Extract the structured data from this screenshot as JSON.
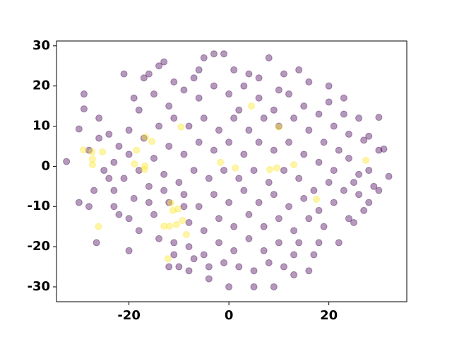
{
  "chart_data": {
    "type": "scatter",
    "xlim": [
      -34.5,
      35.6
    ],
    "ylim": [
      -33.7,
      31.2
    ],
    "xticks": [
      -20,
      0,
      20
    ],
    "yticks": [
      -30,
      -20,
      -10,
      0,
      10,
      20,
      30
    ],
    "alpha": 0.4,
    "series": [
      {
        "color": "#440154",
        "x": [
          -32.5,
          -30,
          -29,
          -29,
          -30,
          -28,
          -26.5,
          -24,
          -23,
          -23,
          -21,
          -20,
          -20,
          -17,
          -14,
          -13,
          -12,
          -11,
          -7,
          -5,
          -3,
          -1,
          4,
          8,
          10,
          14,
          20,
          20,
          23,
          27,
          30,
          32,
          30,
          29,
          27,
          24,
          22,
          18,
          16,
          13,
          9,
          5,
          0,
          -4,
          -8,
          -10,
          28,
          30,
          31,
          25,
          26,
          -26,
          -24,
          -22,
          -25,
          -20,
          -18,
          -19,
          -15,
          -12,
          -9,
          -6,
          -3,
          0,
          3,
          6,
          9,
          12,
          15,
          18,
          21,
          24,
          22,
          19,
          16,
          13,
          10,
          7,
          4,
          1,
          -2,
          -5,
          -8,
          -11,
          -14,
          -17,
          -20,
          -23,
          -21,
          -18,
          -15,
          -12,
          -9,
          -6,
          -3,
          0,
          3,
          6,
          9,
          12,
          15,
          18,
          21,
          24,
          26,
          23,
          20,
          17,
          14,
          11,
          8,
          5,
          2,
          -1,
          -4,
          -7,
          -10,
          -13,
          -16,
          -19,
          -22,
          -18,
          -15,
          -12,
          -9,
          -6,
          -3,
          0,
          3,
          6,
          9,
          12,
          15,
          18,
          21,
          19,
          16,
          13,
          10,
          7,
          4,
          1,
          -2,
          -5,
          -8,
          -14,
          -11,
          -8,
          -5,
          -2,
          1,
          4,
          7,
          10,
          13,
          11,
          8,
          5,
          2,
          -1,
          -4,
          -7,
          -16,
          -27,
          -28,
          -26,
          -16,
          -11,
          -6,
          1,
          6,
          11,
          16,
          23,
          26,
          28,
          25,
          28,
          -13,
          2,
          -9,
          14,
          17
        ],
        "y": [
          1.2,
          9.3,
          18,
          14.3,
          -9,
          -10,
          -19,
          -3,
          -6,
          -10,
          23,
          -13,
          -21,
          22,
          25,
          26,
          -25,
          -22,
          22,
          27,
          28,
          28,
          23,
          27,
          19,
          24,
          20,
          16,
          13,
          6.5,
          4,
          -2.5,
          -6,
          -5,
          -11,
          -13,
          -19,
          -19,
          -26,
          -27,
          -30,
          -30,
          -30,
          -28,
          -26,
          -25,
          7.5,
          12.2,
          4.3,
          -4,
          -7,
          12,
          8,
          5,
          -1,
          9,
          14,
          17,
          18,
          15,
          19,
          17,
          20,
          18,
          20,
          17,
          14,
          18,
          15,
          13,
          10,
          8,
          4,
          6,
          9,
          12,
          10,
          12,
          9,
          12,
          9,
          12,
          10,
          12,
          10,
          7,
          3,
          1,
          -3,
          -1,
          2,
          5,
          3,
          6,
          4,
          6,
          3,
          6,
          4,
          6,
          3,
          1,
          -1,
          2,
          -2,
          -6,
          -4,
          -6,
          -3,
          -1,
          -4,
          -1,
          -3,
          -1,
          -3,
          -1,
          -4,
          -2,
          -5,
          -8,
          -12,
          -16,
          -12,
          -9,
          -7,
          -10,
          -7,
          -9,
          -6,
          -9,
          -7,
          -10,
          -8,
          -11,
          -9,
          -15,
          -13,
          -16,
          -13,
          -15,
          -12,
          -15,
          -13,
          -16,
          -14,
          -18,
          -19,
          -20,
          -22,
          -19,
          -21,
          -18,
          -21,
          -19,
          -22,
          -25,
          -24,
          -26,
          -25,
          -24,
          -25,
          -23,
          -9,
          -6,
          4,
          7,
          23,
          21,
          24,
          24,
          22,
          23,
          21,
          17,
          12,
          -1,
          -14,
          -9,
          -6,
          14,
          -10,
          -19,
          -22
        ]
      },
      {
        "color": "#fde725",
        "x": [
          -29.1,
          -27.4,
          -27.3,
          -27.3,
          -25.3,
          -26.1,
          -18.5,
          -16.7,
          -16.8,
          -16.9,
          -18.9,
          -15.4,
          -11.6,
          -11.2,
          -11.9,
          -10.5,
          -9.3,
          -8.5,
          -12.2,
          -9.6,
          4.5,
          8.2,
          9.6,
          10,
          13,
          17.5,
          27.4,
          -1.7,
          1.3,
          -13,
          -10.2
        ],
        "y": [
          4.1,
          3.6,
          1.8,
          0.4,
          3.6,
          -15,
          4,
          7.3,
          0.1,
          -0.8,
          0.6,
          6.2,
          -9.1,
          -11,
          -14.9,
          -14.5,
          -13.5,
          -17,
          -23,
          9.8,
          15,
          -0.8,
          -0.4,
          9.8,
          0.4,
          -8.2,
          1.5,
          1,
          -0.4,
          -14.9,
          -10.6
        ]
      }
    ]
  }
}
